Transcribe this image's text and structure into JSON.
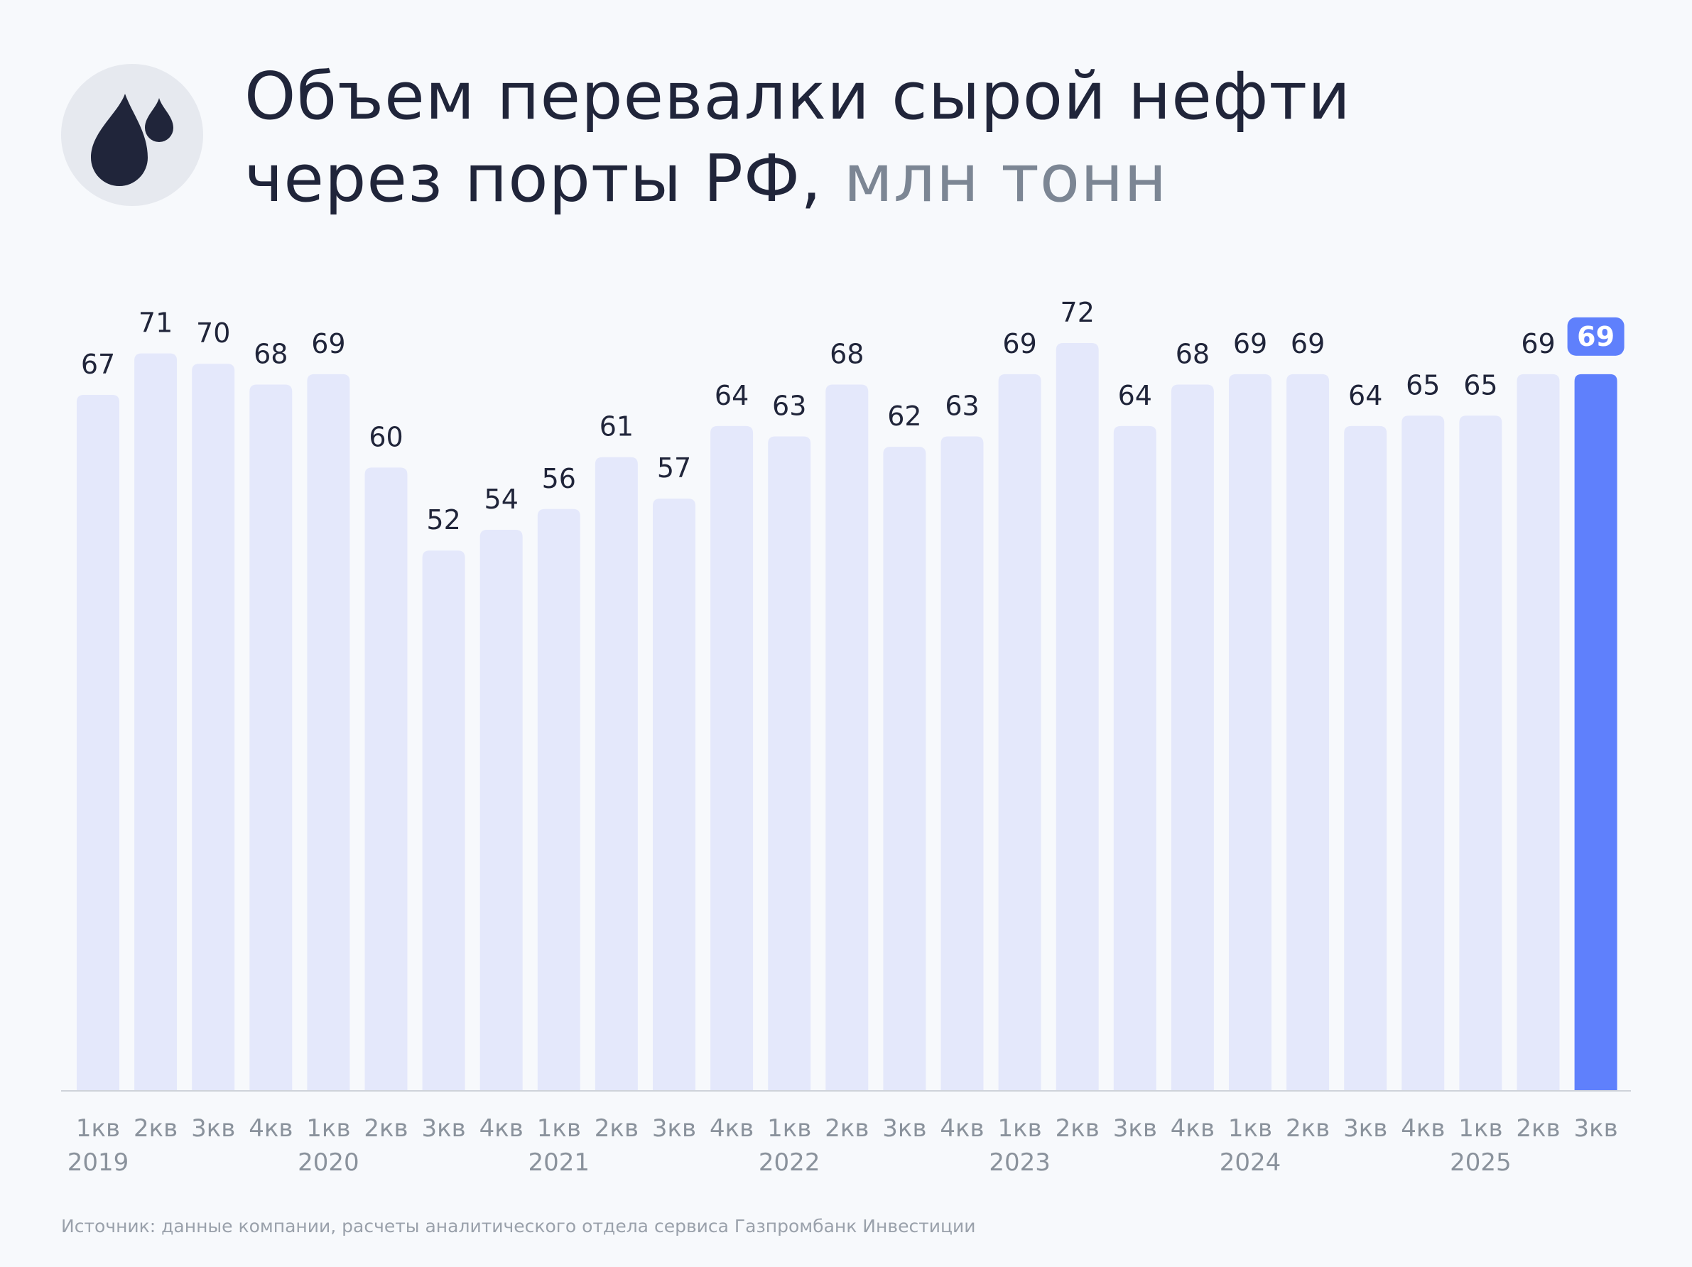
{
  "header": {
    "title_line1": "Объем перевалки сырой нефти",
    "title_line2": "через порты РФ,",
    "title_unit": "млн тонн",
    "icon": "oil-drops-icon"
  },
  "chart_data": {
    "type": "bar",
    "title": "Объем перевалки сырой нефти через порты РФ, млн тонн",
    "categories": [
      "1кв",
      "2кв",
      "3кв",
      "4кв",
      "1кв",
      "2кв",
      "3кв",
      "4кв",
      "1кв",
      "2кв",
      "3кв",
      "4кв",
      "1кв",
      "2кв",
      "3кв",
      "4кв",
      "1кв",
      "2кв",
      "3кв",
      "4кв",
      "1кв",
      "2кв",
      "3кв",
      "4кв",
      "1кв",
      "2кв",
      "3кв"
    ],
    "years": [
      {
        "label": "2019",
        "index": 0
      },
      {
        "label": "2020",
        "index": 4
      },
      {
        "label": "2021",
        "index": 8
      },
      {
        "label": "2022",
        "index": 12
      },
      {
        "label": "2023",
        "index": 16
      },
      {
        "label": "2024",
        "index": 20
      },
      {
        "label": "2025",
        "index": 24
      }
    ],
    "values": [
      67,
      71,
      70,
      68,
      69,
      60,
      52,
      54,
      56,
      61,
      57,
      64,
      63,
      68,
      62,
      63,
      69,
      72,
      64,
      68,
      69,
      69,
      64,
      65,
      65,
      69,
      69
    ],
    "highlight_index": 26,
    "ylim": [
      0,
      72
    ],
    "xlabel": "",
    "ylabel": "",
    "colors": {
      "bar": "#e4e8fb",
      "highlight": "#5f80fc",
      "label": "#20253a",
      "axis_text": "#8a929c",
      "axis_line": "#cfd3da"
    }
  },
  "footer": {
    "source": "Источник: данные компании, расчеты аналитического отдела сервиса Газпромбанк Инвестиции"
  }
}
